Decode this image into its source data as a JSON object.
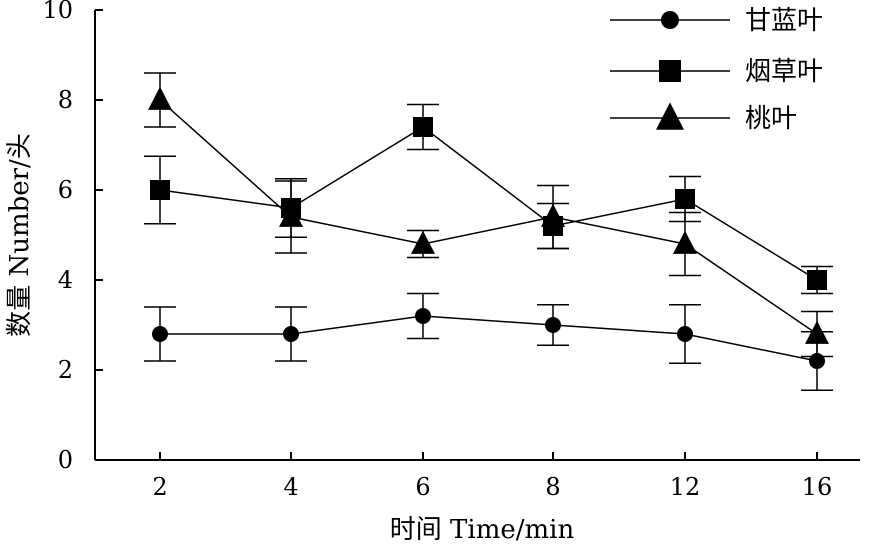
{
  "chart_data": {
    "type": "line",
    "title": "",
    "xlabel": "时间 Time/min",
    "ylabel": "数量 Number/头",
    "ylim": [
      0,
      10
    ],
    "yticks": [
      0,
      2,
      4,
      6,
      8,
      10
    ],
    "categories": [
      "2",
      "4",
      "6",
      "8",
      "12",
      "16"
    ],
    "grid": false,
    "legend_position": "top-right",
    "series": [
      {
        "name": "甘蓝叶",
        "marker": "circle",
        "values": [
          2.8,
          2.8,
          3.2,
          3.0,
          2.8,
          2.2
        ],
        "errors": [
          0.6,
          0.6,
          0.5,
          0.45,
          0.65,
          0.65
        ]
      },
      {
        "name": "烟草叶",
        "marker": "square",
        "values": [
          6.0,
          5.6,
          7.4,
          5.2,
          5.8,
          4.0
        ],
        "errors": [
          0.75,
          0.65,
          0.5,
          0.5,
          0.5,
          0.3
        ]
      },
      {
        "name": "桃叶",
        "marker": "triangle",
        "values": [
          8.0,
          5.4,
          4.8,
          5.4,
          4.8,
          2.8
        ],
        "errors": [
          0.6,
          0.8,
          0.3,
          0.7,
          0.7,
          0.5
        ]
      }
    ]
  }
}
